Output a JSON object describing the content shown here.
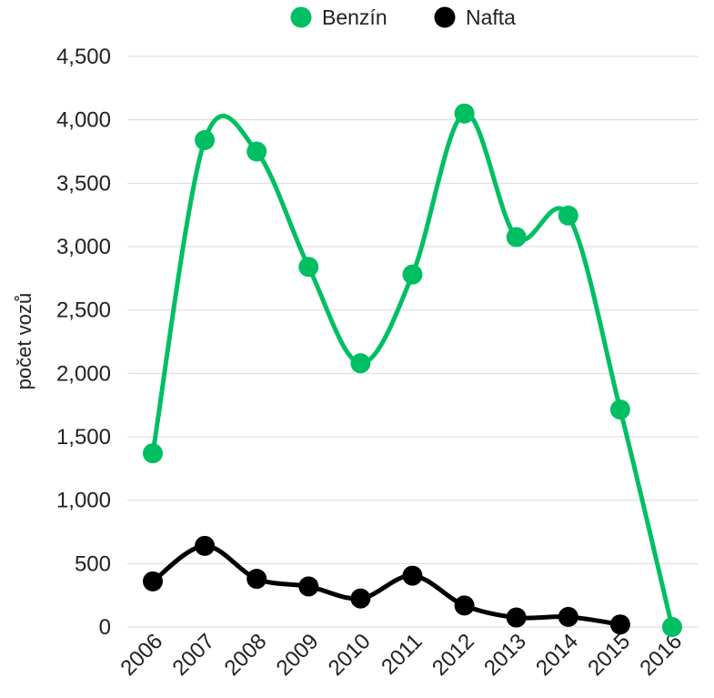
{
  "chart_data": {
    "type": "line",
    "title": "",
    "xlabel": "",
    "ylabel": "počet vozů",
    "categories": [
      "2006",
      "2007",
      "2008",
      "2009",
      "2010",
      "2011",
      "2012",
      "2013",
      "2014",
      "2015",
      "2016"
    ],
    "y_ticks": [
      "0",
      "500",
      "1,000",
      "1,500",
      "2,000",
      "2,500",
      "3,000",
      "3,500",
      "4,000",
      "4,500"
    ],
    "ylim": [
      0,
      4500
    ],
    "grid": true,
    "legend_position": "top-center",
    "series": [
      {
        "name": "Benzín",
        "color": "#00bf63",
        "values": [
          1370,
          3840,
          3750,
          2840,
          2080,
          2780,
          4050,
          3075,
          3245,
          1715,
          0
        ]
      },
      {
        "name": "Nafta",
        "color": "#000000",
        "values": [
          360,
          640,
          380,
          320,
          225,
          405,
          170,
          75,
          80,
          20,
          null
        ]
      }
    ]
  }
}
